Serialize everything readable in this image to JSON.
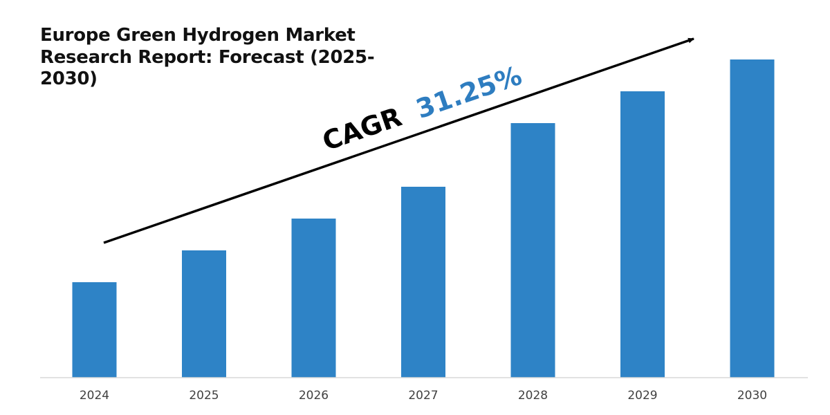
{
  "chart_data": {
    "type": "bar",
    "title": "Europe Green Hydrogen Market Research Report: Forecast (2025-2030)",
    "categories": [
      "2024",
      "2025",
      "2026",
      "2027",
      "2028",
      "2029",
      "2030"
    ],
    "values": [
      33,
      44,
      55,
      66,
      88,
      99,
      110
    ],
    "ylim": [
      0,
      110
    ],
    "colors": {
      "bar": "#2E83C6",
      "axis": "#D9D9D9",
      "tick_text": "#404040",
      "arrow": "#000000",
      "cagr_value": "#2E7DC0"
    },
    "annotations": [
      {
        "id": "cagr",
        "label": "CAGR",
        "value": "31.25%"
      }
    ],
    "grid": false,
    "legend": "none"
  }
}
